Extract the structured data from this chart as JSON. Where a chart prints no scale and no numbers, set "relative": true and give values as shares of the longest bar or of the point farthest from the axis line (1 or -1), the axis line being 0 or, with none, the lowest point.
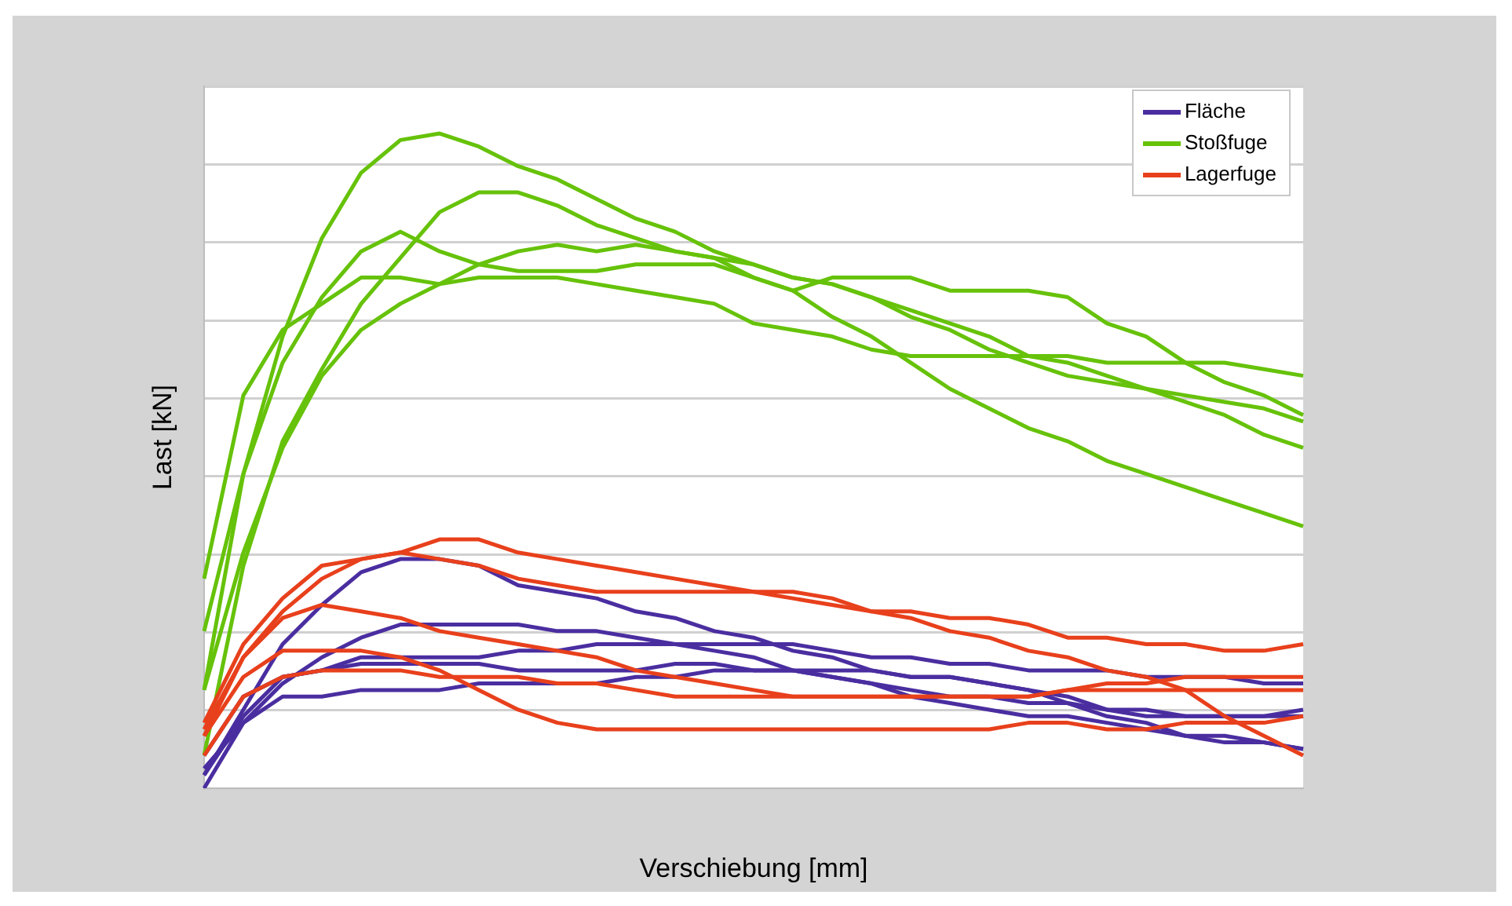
{
  "chart_data": {
    "type": "line",
    "relative": true,
    "xlabel": "Verschiebung [mm]",
    "ylabel": "Last [kN]",
    "grid": "y",
    "legend": "top right",
    "marker": "none",
    "line_style": "solid",
    "categories": [
      null,
      null,
      null,
      null,
      null,
      null,
      null,
      null,
      null,
      null,
      null,
      null,
      null,
      null,
      null,
      null,
      null,
      null,
      null,
      null,
      null,
      null,
      null,
      null,
      null,
      null,
      null,
      null,
      null
    ],
    "series": [
      {
        "name": "Fläche",
        "color": "#4a2ea0",
        "values": [
          0.02,
          0.12,
          0.22,
          0.28,
          0.33,
          0.35,
          0.35,
          0.34,
          0.31,
          0.3,
          0.29,
          0.27,
          0.26,
          0.24,
          0.23,
          0.21,
          0.2,
          0.18,
          0.17,
          0.17,
          0.16,
          0.15,
          0.14,
          0.12,
          0.11,
          0.11,
          0.11,
          0.11,
          0.11
        ]
      },
      {
        "color": "#4a2ea0",
        "values": [
          0.03,
          0.1,
          0.16,
          0.2,
          0.23,
          0.25,
          0.25,
          0.25,
          0.25,
          0.24,
          0.24,
          0.23,
          0.22,
          0.21,
          0.2,
          0.18,
          0.17,
          0.16,
          0.14,
          0.13,
          0.12,
          0.11,
          0.11,
          0.1,
          0.09,
          0.08,
          0.07,
          0.07,
          0.06
        ]
      },
      {
        "color": "#4a2ea0",
        "values": [
          0.05,
          0.14,
          0.17,
          0.18,
          0.2,
          0.2,
          0.2,
          0.2,
          0.21,
          0.21,
          0.22,
          0.22,
          0.22,
          0.22,
          0.22,
          0.22,
          0.21,
          0.2,
          0.2,
          0.19,
          0.19,
          0.18,
          0.18,
          0.18,
          0.17,
          0.17,
          0.17,
          0.16,
          0.16
        ]
      },
      {
        "color": "#4a2ea0",
        "values": [
          0.02,
          0.11,
          0.17,
          0.18,
          0.19,
          0.19,
          0.19,
          0.19,
          0.18,
          0.18,
          0.18,
          0.18,
          0.19,
          0.19,
          0.18,
          0.18,
          0.17,
          0.16,
          0.15,
          0.14,
          0.14,
          0.13,
          0.13,
          0.12,
          0.12,
          0.11,
          0.11,
          0.11,
          0.12
        ]
      },
      {
        "color": "#4a2ea0",
        "values": [
          0.0,
          0.1,
          0.14,
          0.14,
          0.15,
          0.15,
          0.15,
          0.16,
          0.16,
          0.16,
          0.16,
          0.17,
          0.17,
          0.18,
          0.18,
          0.18,
          0.18,
          0.18,
          0.17,
          0.17,
          0.16,
          0.15,
          0.13,
          0.11,
          0.1,
          0.08,
          0.08,
          0.07,
          0.06
        ]
      },
      {
        "name": "Stoßfuge",
        "color": "#66c20a",
        "values": [
          0.15,
          0.48,
          0.69,
          0.84,
          0.94,
          0.99,
          1.0,
          0.98,
          0.95,
          0.93,
          0.9,
          0.87,
          0.85,
          0.82,
          0.8,
          0.78,
          0.77,
          0.75,
          0.73,
          0.71,
          0.69,
          0.66,
          0.65,
          0.63,
          0.61,
          0.59,
          0.57,
          0.54,
          0.52
        ]
      },
      {
        "color": "#66c20a",
        "values": [
          0.05,
          0.34,
          0.53,
          0.64,
          0.74,
          0.81,
          0.88,
          0.91,
          0.91,
          0.89,
          0.86,
          0.84,
          0.82,
          0.81,
          0.8,
          0.78,
          0.77,
          0.75,
          0.72,
          0.7,
          0.67,
          0.65,
          0.63,
          0.62,
          0.61,
          0.6,
          0.59,
          0.58,
          0.56
        ]
      },
      {
        "color": "#66c20a",
        "values": [
          0.24,
          0.48,
          0.65,
          0.75,
          0.82,
          0.85,
          0.82,
          0.8,
          0.79,
          0.79,
          0.79,
          0.8,
          0.8,
          0.8,
          0.78,
          0.76,
          0.78,
          0.78,
          0.78,
          0.76,
          0.76,
          0.76,
          0.75,
          0.71,
          0.69,
          0.65,
          0.62,
          0.6,
          0.57
        ]
      },
      {
        "color": "#66c20a",
        "values": [
          0.32,
          0.6,
          0.7,
          0.74,
          0.78,
          0.78,
          0.77,
          0.78,
          0.78,
          0.78,
          0.77,
          0.76,
          0.75,
          0.74,
          0.71,
          0.7,
          0.69,
          0.67,
          0.66,
          0.66,
          0.66,
          0.66,
          0.66,
          0.65,
          0.65,
          0.65,
          0.65,
          0.64,
          0.63
        ]
      },
      {
        "color": "#66c20a",
        "values": [
          0.15,
          0.36,
          0.52,
          0.63,
          0.7,
          0.74,
          0.77,
          0.8,
          0.82,
          0.83,
          0.82,
          0.83,
          0.82,
          0.81,
          0.78,
          0.76,
          0.72,
          0.69,
          0.65,
          0.61,
          0.58,
          0.55,
          0.53,
          0.5,
          0.48,
          0.46,
          0.44,
          0.42,
          0.4
        ]
      },
      {
        "name": "Lagerfuge",
        "color": "#e8401c",
        "values": [
          0.08,
          0.2,
          0.27,
          0.32,
          0.35,
          0.36,
          0.38,
          0.38,
          0.36,
          0.35,
          0.34,
          0.33,
          0.32,
          0.31,
          0.3,
          0.3,
          0.29,
          0.27,
          0.27,
          0.26,
          0.26,
          0.25,
          0.23,
          0.23,
          0.22,
          0.22,
          0.21,
          0.21,
          0.22
        ]
      },
      {
        "color": "#e8401c",
        "values": [
          0.1,
          0.22,
          0.29,
          0.34,
          0.35,
          0.36,
          0.35,
          0.34,
          0.32,
          0.31,
          0.3,
          0.3,
          0.3,
          0.3,
          0.3,
          0.29,
          0.28,
          0.27,
          0.26,
          0.24,
          0.23,
          0.21,
          0.2,
          0.18,
          0.17,
          0.15,
          0.11,
          0.08,
          0.05
        ]
      },
      {
        "color": "#e8401c",
        "values": [
          0.09,
          0.2,
          0.26,
          0.28,
          0.27,
          0.26,
          0.24,
          0.23,
          0.22,
          0.21,
          0.2,
          0.18,
          0.17,
          0.16,
          0.15,
          0.14,
          0.14,
          0.14,
          0.14,
          0.14,
          0.14,
          0.14,
          0.15,
          0.16,
          0.16,
          0.17,
          0.17,
          0.17,
          0.17
        ]
      },
      {
        "color": "#e8401c",
        "values": [
          0.08,
          0.17,
          0.21,
          0.21,
          0.21,
          0.2,
          0.18,
          0.15,
          0.12,
          0.1,
          0.09,
          0.09,
          0.09,
          0.09,
          0.09,
          0.09,
          0.09,
          0.09,
          0.09,
          0.09,
          0.09,
          0.1,
          0.1,
          0.09,
          0.09,
          0.1,
          0.1,
          0.1,
          0.11
        ]
      },
      {
        "color": "#e8401c",
        "values": [
          0.05,
          0.14,
          0.17,
          0.18,
          0.18,
          0.18,
          0.17,
          0.17,
          0.17,
          0.16,
          0.16,
          0.15,
          0.14,
          0.14,
          0.14,
          0.14,
          0.14,
          0.14,
          0.14,
          0.14,
          0.14,
          0.14,
          0.15,
          0.15,
          0.15,
          0.15,
          0.15,
          0.15,
          0.15
        ]
      }
    ]
  }
}
